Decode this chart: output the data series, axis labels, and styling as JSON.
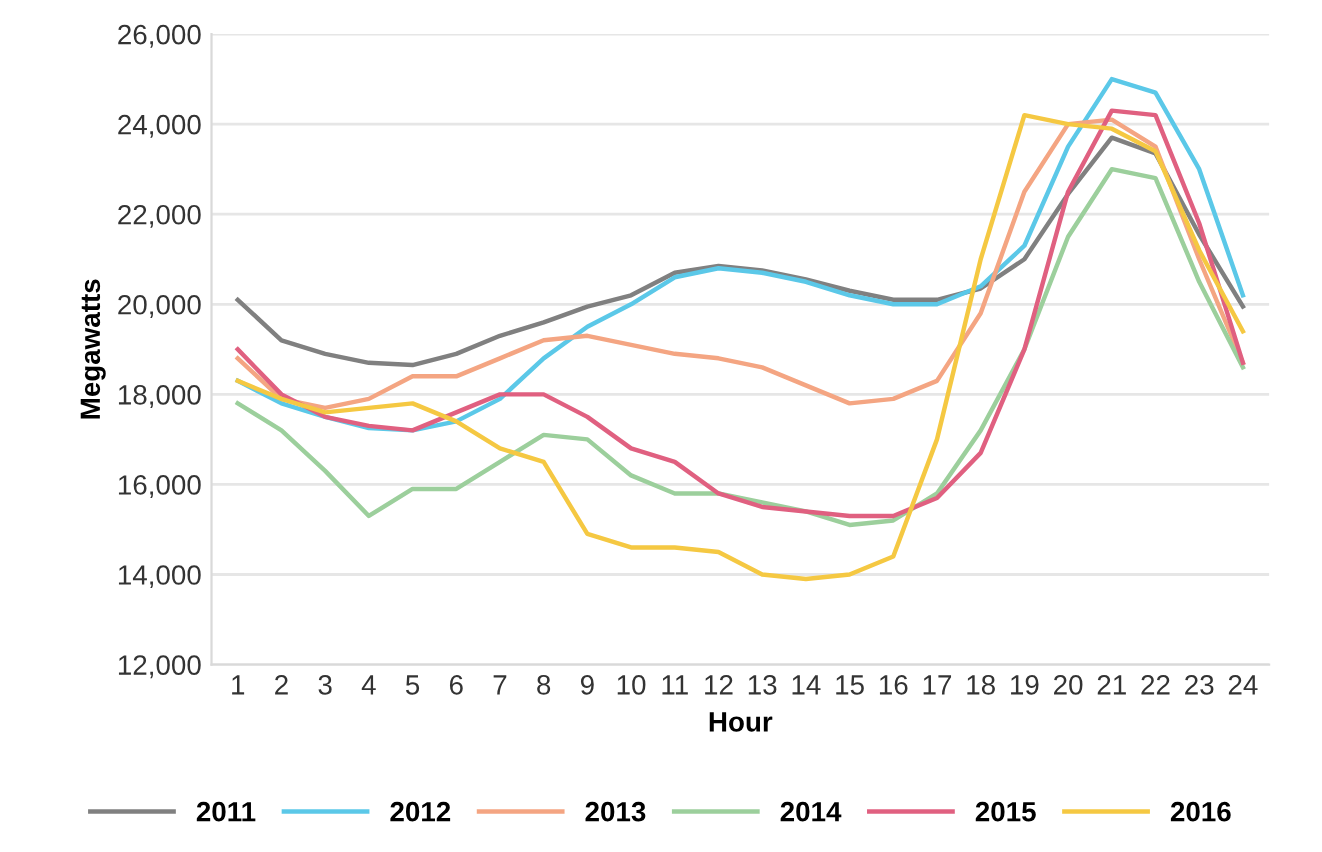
{
  "chart_data": {
    "type": "line",
    "xlabel": "Hour",
    "ylabel": "Megawatts",
    "categories": [
      "1",
      "2",
      "3",
      "4",
      "5",
      "6",
      "7",
      "8",
      "9",
      "10",
      "11",
      "12",
      "13",
      "14",
      "15",
      "16",
      "17",
      "18",
      "19",
      "20",
      "21",
      "22",
      "23",
      "24"
    ],
    "ylim": [
      12000,
      26000
    ],
    "yticks": [
      {
        "value": 12000,
        "label": "12,000"
      },
      {
        "value": 14000,
        "label": "14,000"
      },
      {
        "value": 16000,
        "label": "16,000"
      },
      {
        "value": 18000,
        "label": "18,000"
      },
      {
        "value": 20000,
        "label": "20,000"
      },
      {
        "value": 22000,
        "label": "22,000"
      },
      {
        "value": 24000,
        "label": "24,000"
      },
      {
        "value": 26000,
        "label": "26,000"
      }
    ],
    "grid": "y",
    "legend": "bottom",
    "marker": "none",
    "line_style": "solid",
    "series": [
      {
        "name": "2011",
        "color": "#808080",
        "values": [
          20100,
          19200,
          18900,
          18700,
          18650,
          18900,
          19300,
          19600,
          19950,
          20200,
          20700,
          20850,
          20750,
          20550,
          20300,
          20100,
          20100,
          20350,
          21000,
          22450,
          23700,
          23350,
          21550,
          19950
        ]
      },
      {
        "name": "2012",
        "color": "#5bc8e8",
        "values": [
          18300,
          17800,
          17500,
          17250,
          17200,
          17400,
          17900,
          18800,
          19500,
          20000,
          20600,
          20800,
          20700,
          20500,
          20200,
          20000,
          20000,
          20400,
          21300,
          23500,
          25000,
          24700,
          23000,
          20200
        ]
      },
      {
        "name": "2013",
        "color": "#f4a582",
        "values": [
          18800,
          17900,
          17700,
          17900,
          18400,
          18400,
          18800,
          19200,
          19300,
          19100,
          18900,
          18800,
          18600,
          18200,
          17800,
          17900,
          18300,
          19800,
          22500,
          24000,
          24100,
          23500,
          21000,
          18700
        ]
      },
      {
        "name": "2014",
        "color": "#9ccf9c",
        "values": [
          17800,
          17200,
          16300,
          15300,
          15900,
          15900,
          16500,
          17100,
          17000,
          16200,
          15800,
          15800,
          15600,
          15400,
          15100,
          15200,
          15800,
          17200,
          19000,
          21500,
          23000,
          22800,
          20500,
          18600
        ]
      },
      {
        "name": "2015",
        "color": "#e06080",
        "values": [
          19000,
          18000,
          17500,
          17300,
          17200,
          17600,
          18000,
          18000,
          17500,
          16800,
          16500,
          15800,
          15500,
          15400,
          15300,
          15300,
          15700,
          16700,
          19000,
          22500,
          24300,
          24200,
          21800,
          18700
        ]
      },
      {
        "name": "2016",
        "color": "#f5c842",
        "values": [
          18300,
          17900,
          17600,
          17700,
          17800,
          17400,
          16800,
          16500,
          14900,
          14600,
          14600,
          14500,
          14000,
          13900,
          14000,
          14400,
          17000,
          21000,
          24200,
          24000,
          23900,
          23400,
          21200,
          19400
        ]
      }
    ]
  }
}
